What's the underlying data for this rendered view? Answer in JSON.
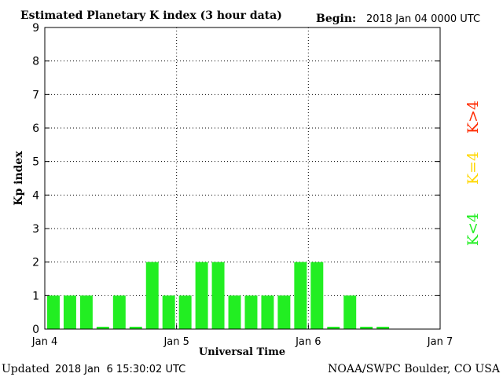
{
  "header": {
    "title": "Estimated Planetary K index (3 hour data)",
    "begin_label": "Begin:",
    "begin_value": "2018 Jan 04 0000 UTC"
  },
  "footer": {
    "updated_label": "Updated",
    "updated_value": "2018 Jan  6 15:30:02 UTC",
    "credit": "NOAA/SWPC Boulder, CO USA"
  },
  "legend": [
    {
      "label": "K>4",
      "color": "#ff2a00"
    },
    {
      "label": "K=4",
      "color": "#ffd700"
    },
    {
      "label": "K<4",
      "color": "#22ee22"
    }
  ],
  "chart_data": {
    "type": "bar",
    "title": "Estimated Planetary K index (3 hour data)",
    "xlabel": "Universal Time",
    "ylabel": "Kp index",
    "ylim": [
      0,
      9
    ],
    "yticks": [
      0,
      1,
      2,
      3,
      4,
      5,
      6,
      7,
      8,
      9
    ],
    "xtick_labels": [
      "Jan 4",
      "Jan 5",
      "Jan 6",
      "Jan 7"
    ],
    "grid": true,
    "interval_hours": 3,
    "bar_color": "#22ee22",
    "values": [
      1,
      1,
      1,
      0,
      1,
      0,
      2,
      1,
      1,
      2,
      2,
      1,
      1,
      1,
      1,
      2,
      2,
      0,
      1,
      0,
      0
    ]
  }
}
